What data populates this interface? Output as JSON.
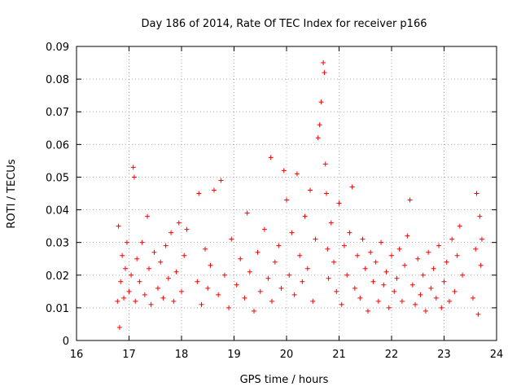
{
  "chart_data": {
    "type": "scatter",
    "title": "Day 186 of 2014, Rate Of TEC Index for receiver p166",
    "xlabel": "GPS time / hours",
    "ylabel": "ROTI / TECUs",
    "xlim": [
      16,
      24
    ],
    "ylim": [
      0,
      0.09
    ],
    "xticks": [
      "16",
      "17",
      "18",
      "19",
      "20",
      "21",
      "22",
      "23",
      "24"
    ],
    "yticks": [
      "0",
      "0.01",
      "0.02",
      "0.03",
      "0.04",
      "0.05",
      "0.06",
      "0.07",
      "0.08",
      "0.09"
    ],
    "grid": true,
    "marker": "+",
    "color": "#ff0000",
    "series": [
      {
        "name": "ROTI",
        "x": [
          16.78,
          16.8,
          16.82,
          16.84,
          16.87,
          16.9,
          16.93,
          16.96,
          17.0,
          17.04,
          17.08,
          17.1,
          17.12,
          17.15,
          17.2,
          17.25,
          17.3,
          17.35,
          17.38,
          17.42,
          17.48,
          17.55,
          17.6,
          17.65,
          17.7,
          17.75,
          17.8,
          17.85,
          17.9,
          17.95,
          18.0,
          18.05,
          18.1,
          18.3,
          18.33,
          18.38,
          18.45,
          18.5,
          18.55,
          18.62,
          18.7,
          18.75,
          18.82,
          18.9,
          18.95,
          19.05,
          19.12,
          19.2,
          19.25,
          19.3,
          19.38,
          19.45,
          19.5,
          19.58,
          19.65,
          19.7,
          19.72,
          19.78,
          19.85,
          19.9,
          19.95,
          20.0,
          20.05,
          20.1,
          20.15,
          20.2,
          20.25,
          20.3,
          20.35,
          20.4,
          20.45,
          20.5,
          20.55,
          20.6,
          20.63,
          20.66,
          20.7,
          20.72,
          20.74,
          20.76,
          20.78,
          20.8,
          20.85,
          20.9,
          20.95,
          21.0,
          21.05,
          21.1,
          21.15,
          21.2,
          21.25,
          21.3,
          21.35,
          21.4,
          21.45,
          21.5,
          21.55,
          21.6,
          21.65,
          21.7,
          21.75,
          21.8,
          21.85,
          21.9,
          21.95,
          22.0,
          22.05,
          22.1,
          22.15,
          22.2,
          22.25,
          22.3,
          22.35,
          22.4,
          22.45,
          22.5,
          22.55,
          22.6,
          22.65,
          22.7,
          22.75,
          22.8,
          22.85,
          22.9,
          22.95,
          23.0,
          23.05,
          23.1,
          23.15,
          23.2,
          23.25,
          23.3,
          23.35,
          23.55,
          23.6,
          23.62,
          23.65,
          23.68,
          23.7,
          23.72
        ],
        "y": [
          0.012,
          0.035,
          0.004,
          0.018,
          0.026,
          0.013,
          0.022,
          0.03,
          0.015,
          0.02,
          0.053,
          0.05,
          0.012,
          0.025,
          0.018,
          0.03,
          0.014,
          0.038,
          0.022,
          0.011,
          0.027,
          0.016,
          0.024,
          0.013,
          0.029,
          0.019,
          0.033,
          0.012,
          0.021,
          0.036,
          0.015,
          0.026,
          0.034,
          0.018,
          0.045,
          0.011,
          0.028,
          0.016,
          0.023,
          0.046,
          0.014,
          0.049,
          0.02,
          0.01,
          0.031,
          0.017,
          0.025,
          0.013,
          0.039,
          0.021,
          0.009,
          0.027,
          0.015,
          0.034,
          0.019,
          0.056,
          0.012,
          0.024,
          0.029,
          0.016,
          0.052,
          0.043,
          0.02,
          0.033,
          0.014,
          0.051,
          0.026,
          0.018,
          0.038,
          0.022,
          0.046,
          0.012,
          0.031,
          0.062,
          0.066,
          0.073,
          0.085,
          0.082,
          0.054,
          0.045,
          0.028,
          0.019,
          0.036,
          0.024,
          0.015,
          0.042,
          0.011,
          0.029,
          0.02,
          0.033,
          0.047,
          0.016,
          0.026,
          0.013,
          0.031,
          0.022,
          0.009,
          0.027,
          0.018,
          0.024,
          0.012,
          0.03,
          0.017,
          0.021,
          0.01,
          0.026,
          0.015,
          0.019,
          0.028,
          0.012,
          0.023,
          0.032,
          0.043,
          0.017,
          0.011,
          0.025,
          0.014,
          0.02,
          0.009,
          0.027,
          0.016,
          0.022,
          0.013,
          0.029,
          0.01,
          0.018,
          0.024,
          0.012,
          0.031,
          0.015,
          0.026,
          0.035,
          0.02,
          0.013,
          0.028,
          0.045,
          0.008,
          0.038,
          0.023,
          0.031
        ]
      }
    ]
  }
}
